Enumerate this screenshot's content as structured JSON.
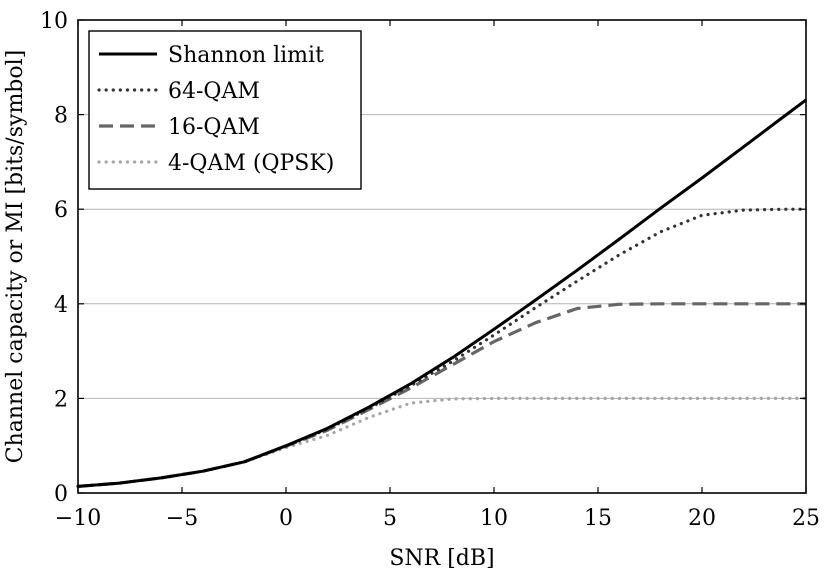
{
  "chart_data": {
    "type": "line",
    "title": "",
    "xlabel": "SNR [dB]",
    "ylabel": "Channel capacity or MI [bits/symbol]",
    "xlim": [
      -10,
      25
    ],
    "ylim": [
      0,
      10
    ],
    "xticks": [
      -10,
      -5,
      0,
      5,
      10,
      15,
      20,
      25
    ],
    "yticks": [
      0,
      2,
      4,
      6,
      8,
      10
    ],
    "xtick_labels": [
      "−10",
      "−5",
      "0",
      "5",
      "10",
      "15",
      "20",
      "25"
    ],
    "ytick_labels": [
      "0",
      "2",
      "4",
      "6",
      "8",
      "10"
    ],
    "grid": "horizontal",
    "legend_position": "top-left",
    "x": [
      -10,
      -8,
      -6,
      -4,
      -2,
      0,
      2,
      4,
      6,
      8,
      10,
      12,
      14,
      16,
      18,
      20,
      22,
      24,
      25
    ],
    "series": [
      {
        "name": "Shannon limit",
        "color": "#000000",
        "style": "solid",
        "values": [
          0.14,
          0.21,
          0.32,
          0.46,
          0.66,
          1.0,
          1.37,
          1.82,
          2.31,
          2.86,
          3.46,
          4.08,
          4.71,
          5.36,
          6.02,
          6.66,
          7.32,
          7.98,
          8.31
        ]
      },
      {
        "name": "64-QAM",
        "color": "#333333",
        "style": "dotted",
        "values": [
          0.14,
          0.21,
          0.32,
          0.46,
          0.66,
          0.99,
          1.35,
          1.79,
          2.27,
          2.78,
          3.34,
          3.92,
          4.48,
          5.03,
          5.52,
          5.87,
          5.98,
          6.0,
          6.0
        ]
      },
      {
        "name": "16-QAM",
        "color": "#666666",
        "style": "dashed",
        "values": [
          0.14,
          0.21,
          0.32,
          0.46,
          0.66,
          0.99,
          1.33,
          1.77,
          2.22,
          2.71,
          3.2,
          3.6,
          3.9,
          3.99,
          4.0,
          4.0,
          4.0,
          4.0,
          4.0
        ]
      },
      {
        "name": "4-QAM (QPSK)",
        "color": "#a6a6a6",
        "style": "dotted",
        "values": [
          0.14,
          0.21,
          0.32,
          0.46,
          0.66,
          0.96,
          1.22,
          1.6,
          1.9,
          1.99,
          2.0,
          2.0,
          2.0,
          2.0,
          2.0,
          2.0,
          2.0,
          2.0,
          2.0
        ]
      }
    ]
  }
}
